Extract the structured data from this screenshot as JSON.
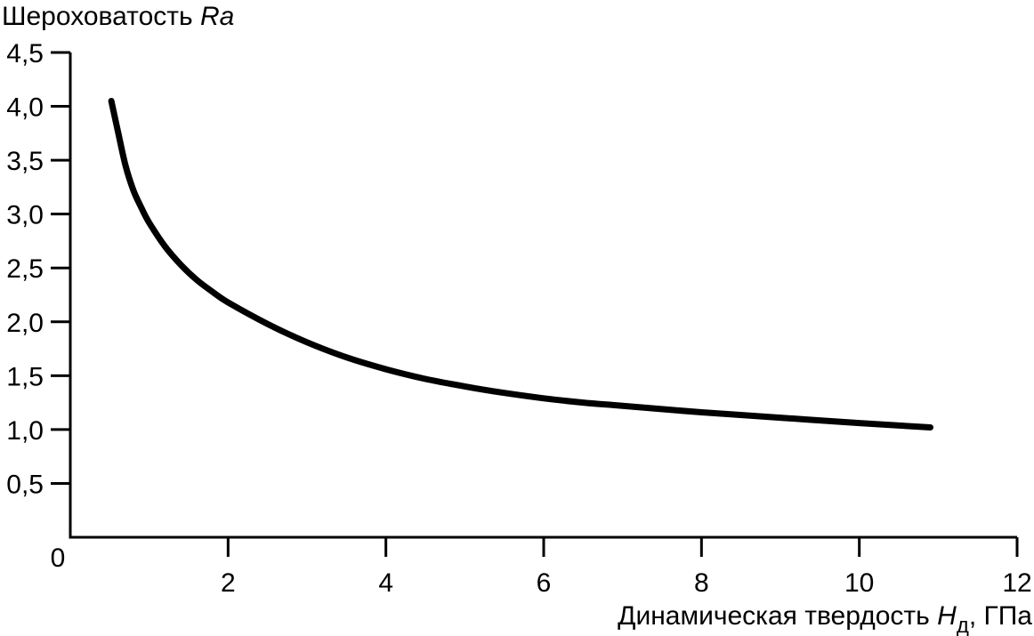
{
  "chart_data": {
    "type": "line",
    "ylabel": {
      "text": "Шероховатость ",
      "italic_part": "Ra"
    },
    "xlabel": {
      "text": "Динамическая твердость ",
      "italic_part": "H",
      "subscript": "д",
      "suffix": ", ГПа"
    },
    "origin_label": "0",
    "xlim": [
      0,
      12
    ],
    "ylim": [
      0,
      4.5
    ],
    "x_ticks": [
      {
        "value": 2,
        "label": "2"
      },
      {
        "value": 4,
        "label": "4"
      },
      {
        "value": 6,
        "label": "6"
      },
      {
        "value": 8,
        "label": "8"
      },
      {
        "value": 10,
        "label": "10"
      },
      {
        "value": 12,
        "label": "12"
      }
    ],
    "y_ticks": [
      {
        "value": 0.5,
        "label": "0,5"
      },
      {
        "value": 1.0,
        "label": "1,0"
      },
      {
        "value": 1.5,
        "label": "1,5"
      },
      {
        "value": 2.0,
        "label": "2,0"
      },
      {
        "value": 2.5,
        "label": "2,5"
      },
      {
        "value": 3.0,
        "label": "3,0"
      },
      {
        "value": 3.5,
        "label": "3,5"
      },
      {
        "value": 4.0,
        "label": "4,0"
      },
      {
        "value": 4.5,
        "label": "4,5"
      }
    ],
    "grid": false,
    "series": [
      {
        "color": "#000000",
        "points": [
          [
            0.52,
            4.05
          ],
          [
            0.6,
            3.78
          ],
          [
            0.7,
            3.45
          ],
          [
            0.8,
            3.22
          ],
          [
            0.9,
            3.06
          ],
          [
            1.0,
            2.92
          ],
          [
            1.2,
            2.7
          ],
          [
            1.4,
            2.53
          ],
          [
            1.6,
            2.39
          ],
          [
            1.8,
            2.28
          ],
          [
            2.0,
            2.18
          ],
          [
            2.5,
            1.98
          ],
          [
            3.0,
            1.81
          ],
          [
            3.5,
            1.67
          ],
          [
            4.0,
            1.56
          ],
          [
            4.5,
            1.47
          ],
          [
            5.0,
            1.4
          ],
          [
            5.5,
            1.34
          ],
          [
            6.0,
            1.29
          ],
          [
            6.5,
            1.25
          ],
          [
            7.0,
            1.22
          ],
          [
            8.0,
            1.16
          ],
          [
            9.0,
            1.11
          ],
          [
            10.0,
            1.06
          ],
          [
            10.9,
            1.02
          ]
        ]
      }
    ]
  }
}
